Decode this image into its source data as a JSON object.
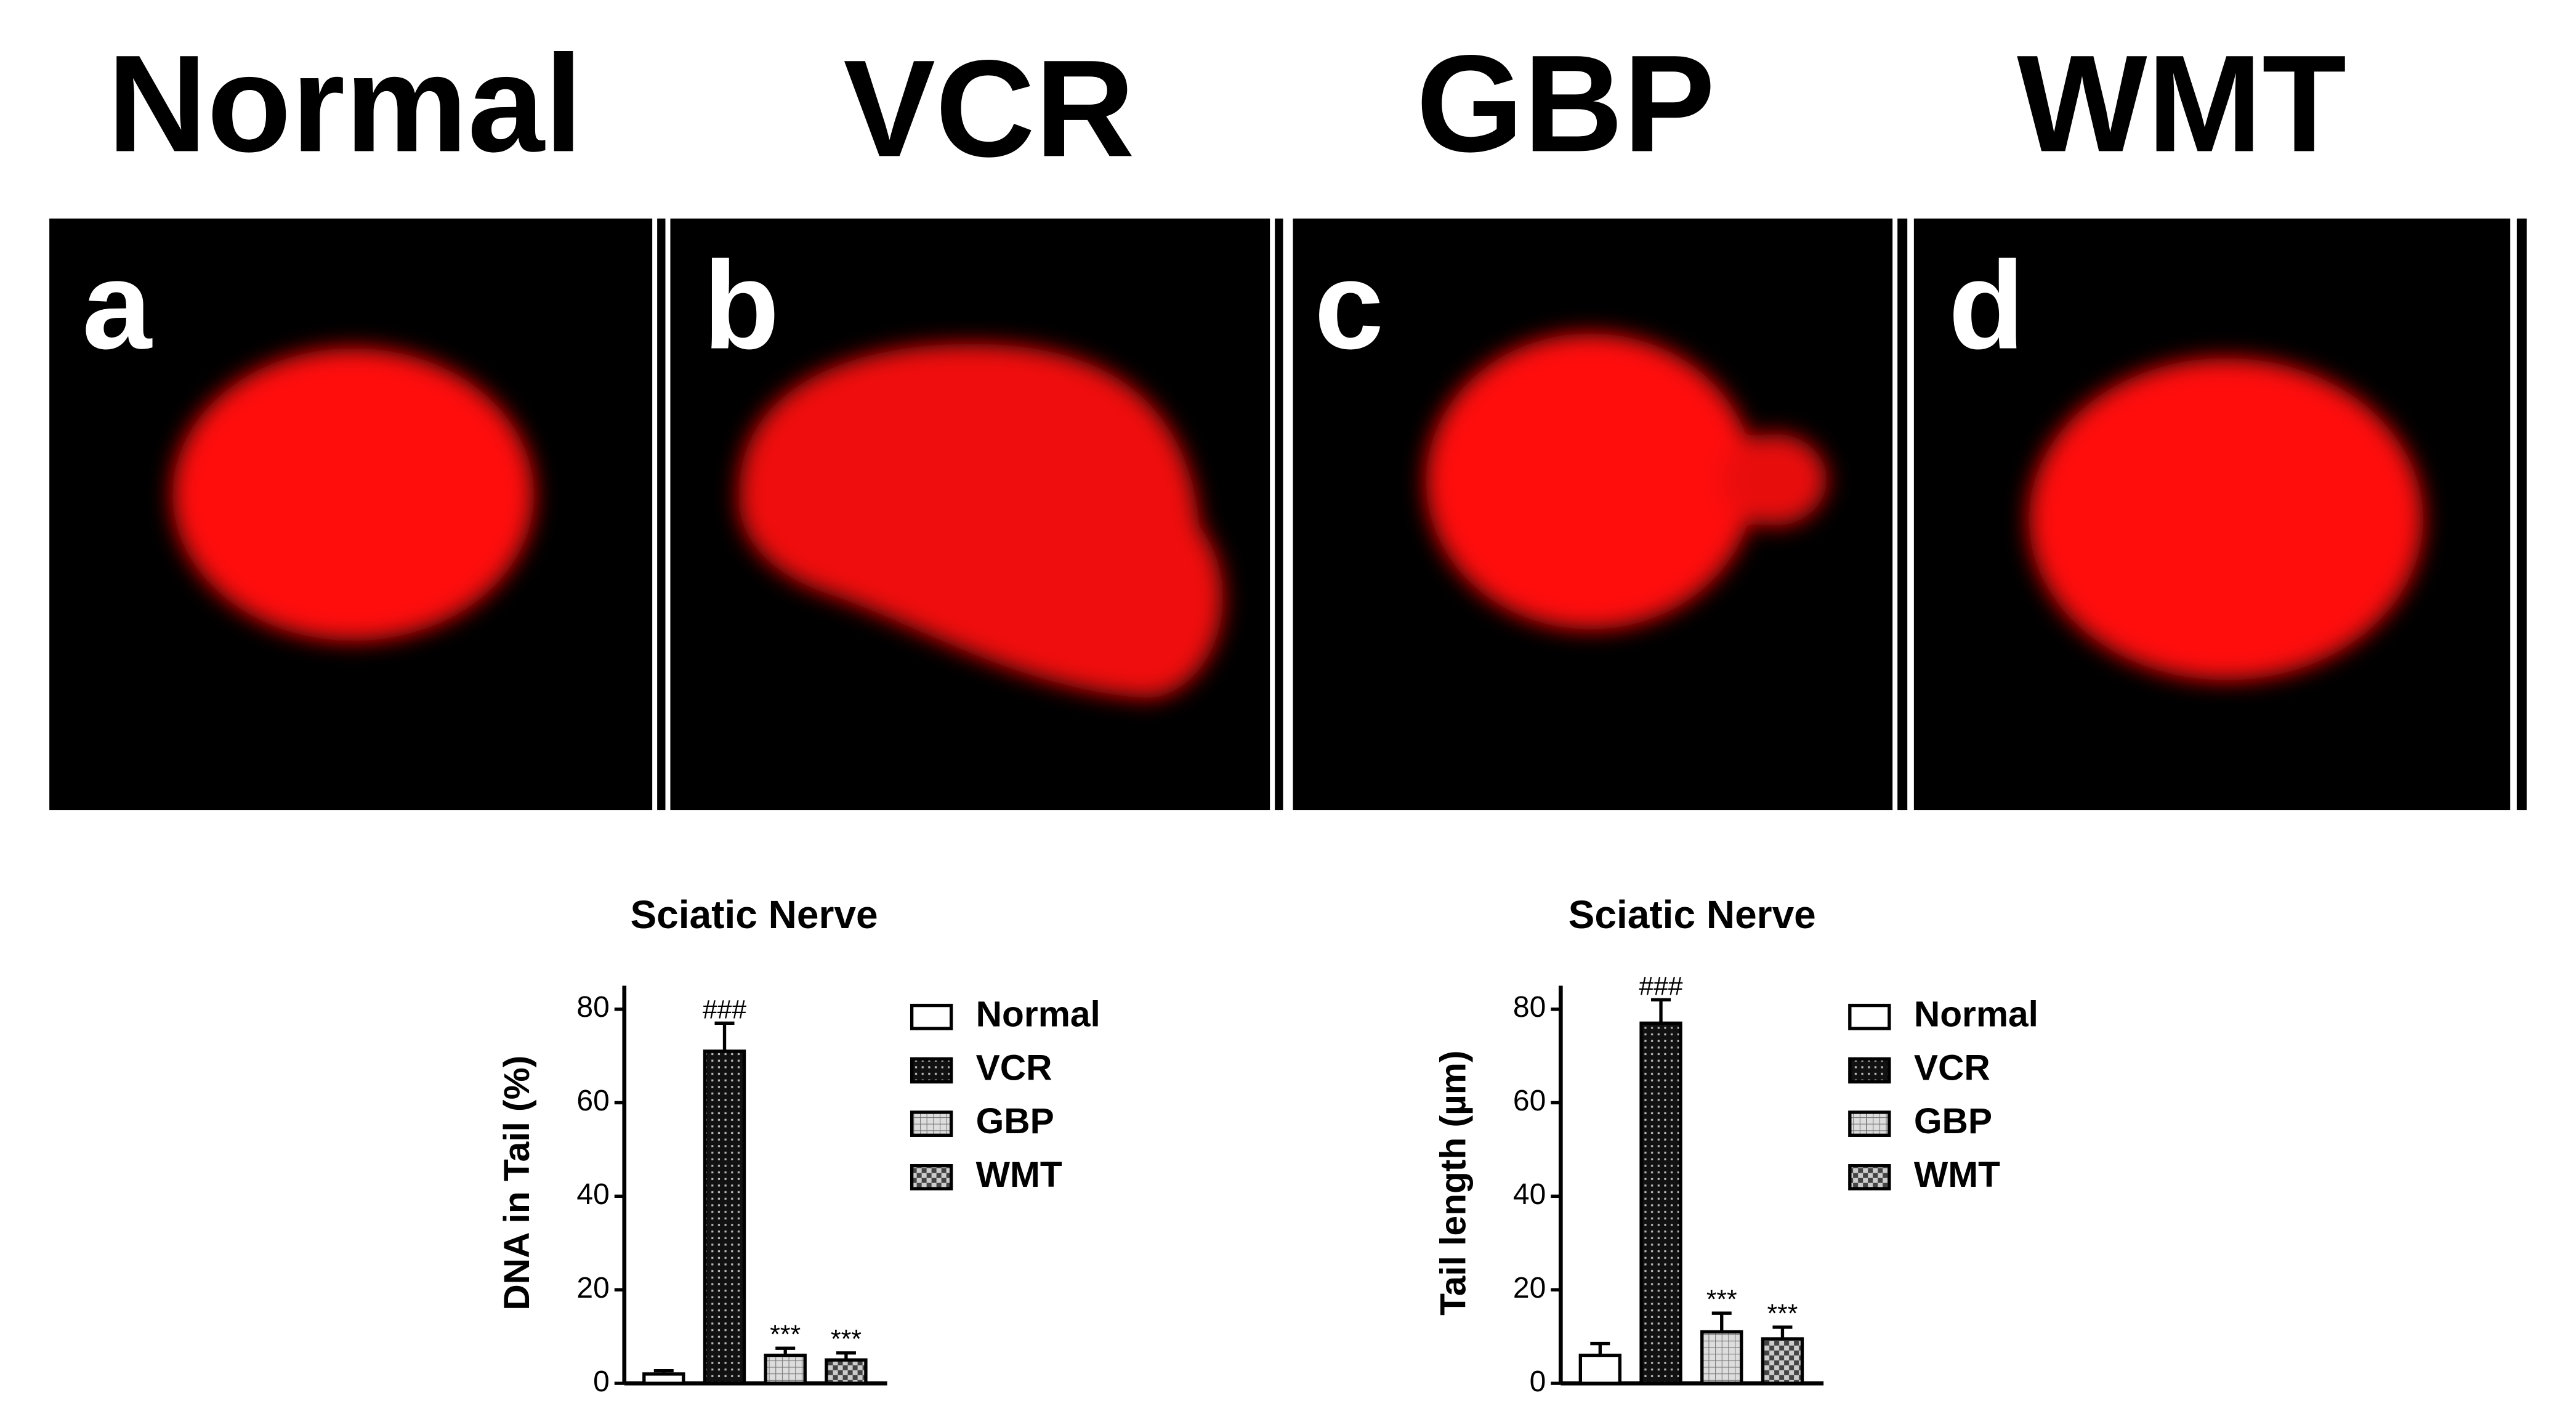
{
  "panels": [
    {
      "title": "Normal",
      "label": "a"
    },
    {
      "title": "VCR",
      "label": "b"
    },
    {
      "title": "GBP",
      "label": "c"
    },
    {
      "title": "WMT",
      "label": "d"
    }
  ],
  "chart_data": [
    {
      "type": "bar",
      "title": "Sciatic Nerve",
      "y_label": "DNA in Tail (%)",
      "categories": [
        "Normal",
        "VCR",
        "GBP",
        "WMT"
      ],
      "values": [
        2,
        71,
        6,
        5
      ],
      "errors": [
        0.7,
        6,
        1.5,
        1.5
      ],
      "annotations": [
        null,
        "###",
        "***",
        "***"
      ],
      "patterns": [
        "white",
        "dots-dark",
        "grid-light",
        "checker"
      ],
      "ylim": [
        0,
        85
      ],
      "yticks": [
        0,
        20,
        40,
        60,
        80
      ]
    },
    {
      "type": "bar",
      "title": "Sciatic Nerve",
      "y_label": "Tail length (µm)",
      "categories": [
        "Normal",
        "VCR",
        "GBP",
        "WMT"
      ],
      "values": [
        6,
        77,
        11,
        9.5
      ],
      "errors": [
        2.5,
        5,
        4,
        2.5
      ],
      "annotations": [
        null,
        "###",
        "***",
        "***"
      ],
      "patterns": [
        "white",
        "dots-dark",
        "grid-light",
        "checker"
      ],
      "ylim": [
        0,
        85
      ],
      "yticks": [
        0,
        20,
        40,
        60,
        80
      ]
    }
  ]
}
